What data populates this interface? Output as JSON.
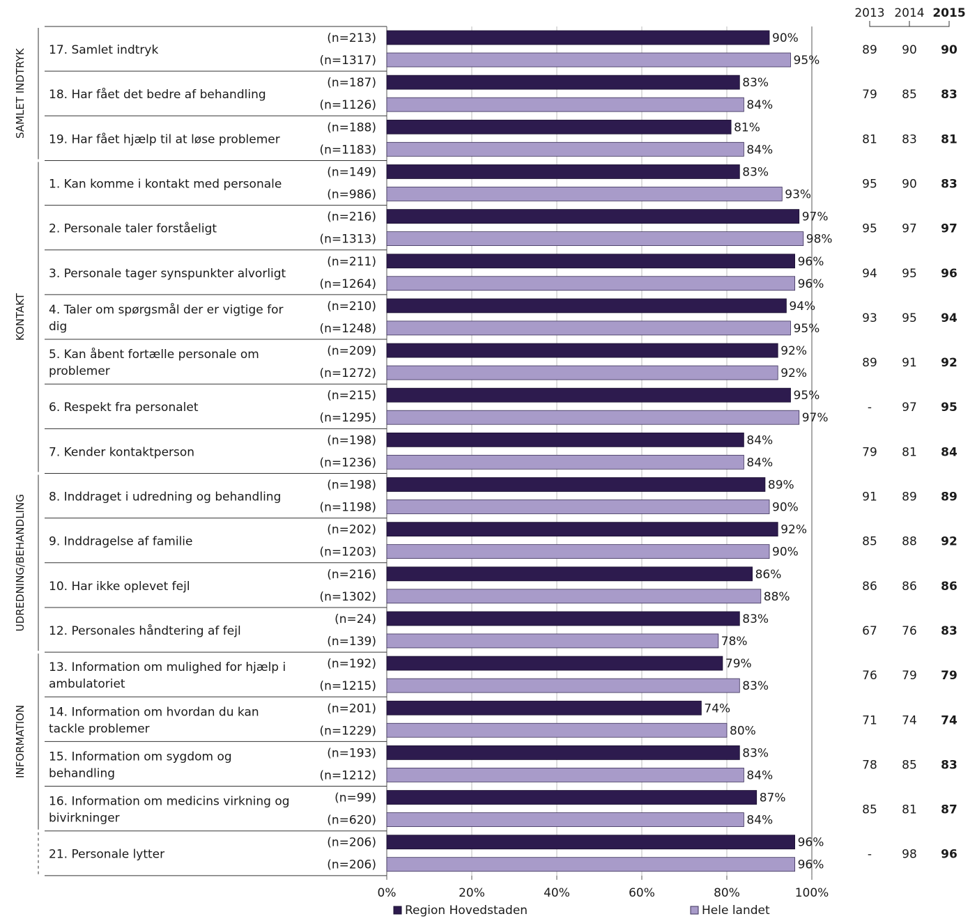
{
  "chart_data": {
    "type": "bar",
    "orientation": "horizontal",
    "xlim": [
      0,
      100
    ],
    "x_ticks": [
      "0%",
      "20%",
      "40%",
      "60%",
      "80%",
      "100%"
    ],
    "grid": true,
    "legend_placement": "bottom",
    "colors": {
      "region": "#2d1b4e",
      "landet": "#a89bc9"
    },
    "year_headers": [
      "2013",
      "2014",
      "2015"
    ],
    "groups": [
      {
        "label": "SAMLET INDTRYK",
        "rows": [
          0,
          2
        ]
      },
      {
        "label": "KONTAKT",
        "rows": [
          3,
          9
        ]
      },
      {
        "label": "UDREDNING/BEHANDLING",
        "rows": [
          10,
          13
        ]
      },
      {
        "label": "INFORMATION",
        "rows": [
          14,
          17
        ]
      },
      {
        "label": "",
        "rows": [
          18,
          18
        ],
        "dashed": true
      }
    ],
    "series": [
      {
        "name": "Region Hovedstaden",
        "values": [
          90,
          83,
          81,
          83,
          97,
          96,
          94,
          92,
          95,
          84,
          89,
          92,
          86,
          83,
          79,
          74,
          83,
          87,
          96
        ]
      },
      {
        "name": "Hele landet",
        "values": [
          95,
          84,
          84,
          93,
          98,
          96,
          95,
          92,
          97,
          84,
          90,
          90,
          88,
          78,
          83,
          80,
          84,
          84,
          96
        ]
      }
    ],
    "questions": [
      {
        "label": "17. Samlet indtryk",
        "n_region": "(n=213)",
        "n_landet": "(n=1317)",
        "pct_region": "90%",
        "pct_landet": "95%",
        "y2013": "89",
        "y2014": "90",
        "y2015": "90"
      },
      {
        "label": "18. Har fået det bedre af behandling",
        "n_region": "(n=187)",
        "n_landet": "(n=1126)",
        "pct_region": "83%",
        "pct_landet": "84%",
        "y2013": "79",
        "y2014": "85",
        "y2015": "83"
      },
      {
        "label": "19. Har fået hjælp til at løse problemer",
        "n_region": "(n=188)",
        "n_landet": "(n=1183)",
        "pct_region": "81%",
        "pct_landet": "84%",
        "y2013": "81",
        "y2014": "83",
        "y2015": "81"
      },
      {
        "label": "1. Kan komme i kontakt med personale",
        "n_region": "(n=149)",
        "n_landet": "(n=986)",
        "pct_region": "83%",
        "pct_landet": "93%",
        "y2013": "95",
        "y2014": "90",
        "y2015": "83"
      },
      {
        "label": "2. Personale taler forståeligt",
        "n_region": "(n=216)",
        "n_landet": "(n=1313)",
        "pct_region": "97%",
        "pct_landet": "98%",
        "y2013": "95",
        "y2014": "97",
        "y2015": "97"
      },
      {
        "label": "3. Personale tager synspunkter alvorligt",
        "n_region": "(n=211)",
        "n_landet": "(n=1264)",
        "pct_region": "96%",
        "pct_landet": "96%",
        "y2013": "94",
        "y2014": "95",
        "y2015": "96"
      },
      {
        "label": [
          "4. Taler om spørgsmål der er vigtige for",
          "dig"
        ],
        "n_region": "(n=210)",
        "n_landet": "(n=1248)",
        "pct_region": "94%",
        "pct_landet": "95%",
        "y2013": "93",
        "y2014": "95",
        "y2015": "94"
      },
      {
        "label": [
          "5. Kan åbent fortælle personale om",
          "problemer"
        ],
        "n_region": "(n=209)",
        "n_landet": "(n=1272)",
        "pct_region": "92%",
        "pct_landet": "92%",
        "y2013": "89",
        "y2014": "91",
        "y2015": "92"
      },
      {
        "label": "6. Respekt fra personalet",
        "n_region": "(n=215)",
        "n_landet": "(n=1295)",
        "pct_region": "95%",
        "pct_landet": "97%",
        "y2013": "-",
        "y2014": "97",
        "y2015": "95"
      },
      {
        "label": "7. Kender kontaktperson",
        "n_region": "(n=198)",
        "n_landet": "(n=1236)",
        "pct_region": "84%",
        "pct_landet": "84%",
        "y2013": "79",
        "y2014": "81",
        "y2015": "84"
      },
      {
        "label": "8. Inddraget i udredning og behandling",
        "n_region": "(n=198)",
        "n_landet": "(n=1198)",
        "pct_region": "89%",
        "pct_landet": "90%",
        "y2013": "91",
        "y2014": "89",
        "y2015": "89"
      },
      {
        "label": "9. Inddragelse af familie",
        "n_region": "(n=202)",
        "n_landet": "(n=1203)",
        "pct_region": "92%",
        "pct_landet": "90%",
        "y2013": "85",
        "y2014": "88",
        "y2015": "92"
      },
      {
        "label": "10. Har ikke oplevet fejl",
        "n_region": "(n=216)",
        "n_landet": "(n=1302)",
        "pct_region": "86%",
        "pct_landet": "88%",
        "y2013": "86",
        "y2014": "86",
        "y2015": "86"
      },
      {
        "label": "12. Personales håndtering af fejl",
        "n_region": "(n=24)",
        "n_landet": "(n=139)",
        "pct_region": "83%",
        "pct_landet": "78%",
        "y2013": "67",
        "y2014": "76",
        "y2015": "83"
      },
      {
        "label": [
          "13. Information om mulighed for hjælp i",
          "ambulatoriet"
        ],
        "n_region": "(n=192)",
        "n_landet": "(n=1215)",
        "pct_region": "79%",
        "pct_landet": "83%",
        "y2013": "76",
        "y2014": "79",
        "y2015": "79"
      },
      {
        "label": [
          "14. Information om hvordan du kan",
          "tackle problemer"
        ],
        "n_region": "(n=201)",
        "n_landet": "(n=1229)",
        "pct_region": "74%",
        "pct_landet": "80%",
        "y2013": "71",
        "y2014": "74",
        "y2015": "74"
      },
      {
        "label": [
          "15. Information om sygdom og",
          "behandling"
        ],
        "n_region": "(n=193)",
        "n_landet": "(n=1212)",
        "pct_region": "83%",
        "pct_landet": "84%",
        "y2013": "78",
        "y2014": "85",
        "y2015": "83"
      },
      {
        "label": [
          "16. Information om medicins virkning og",
          "bivirkninger"
        ],
        "n_region": "(n=99)",
        "n_landet": "(n=620)",
        "pct_region": "87%",
        "pct_landet": "84%",
        "y2013": "85",
        "y2014": "81",
        "y2015": "87"
      },
      {
        "label": "21. Personale lytter",
        "n_region": "(n=206)",
        "n_landet": "(n=206)",
        "pct_region": "96%",
        "pct_landet": "96%",
        "y2013": "-",
        "y2014": "98",
        "y2015": "96"
      }
    ]
  }
}
